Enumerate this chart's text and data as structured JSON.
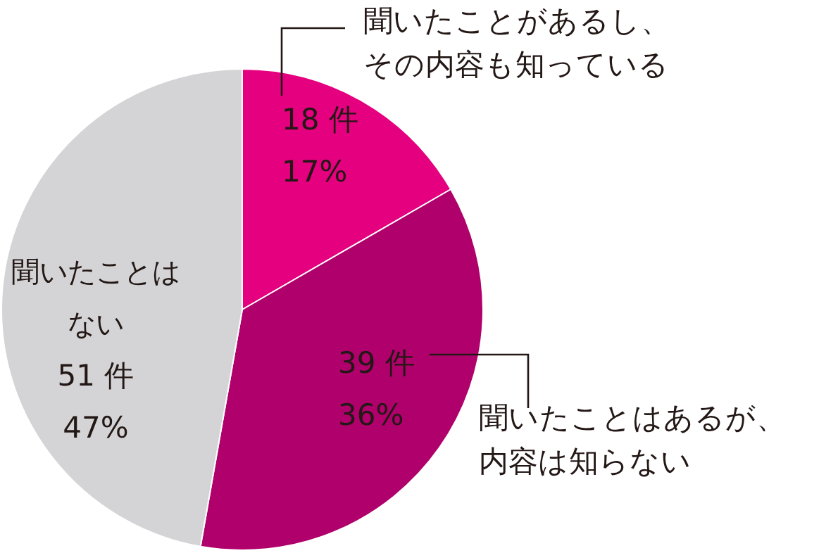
{
  "chart_data": {
    "type": "pie",
    "categories": [
      "聞いたことがあるし、その内容も知っている",
      "聞いたことはあるが、内容は知らない",
      "聞いたことはない"
    ],
    "values": [
      18,
      39,
      51
    ],
    "value_labels": [
      "18 件",
      "39 件",
      "51 件"
    ],
    "annotations": [
      "17%",
      "36%",
      "47%"
    ],
    "colors": [
      "#e4007f",
      "#b0006b",
      "#d4d4d6"
    ]
  }
}
